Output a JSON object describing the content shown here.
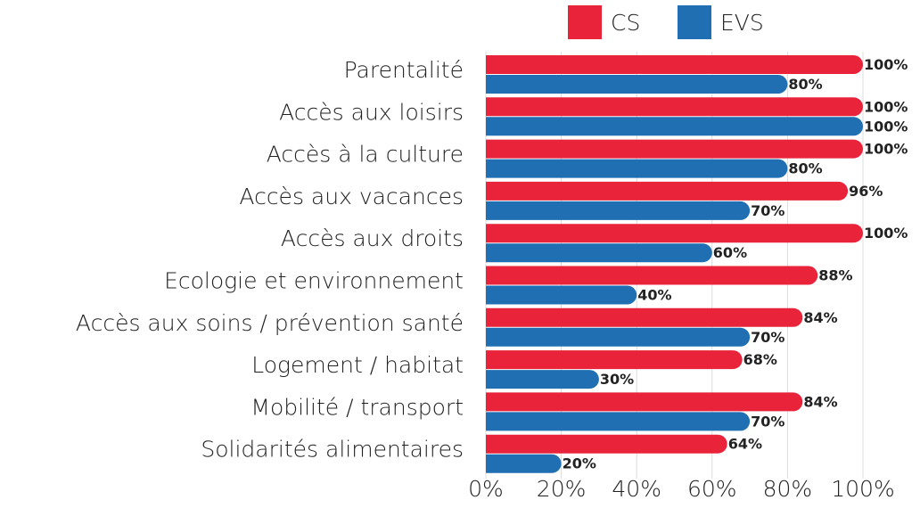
{
  "chart_data": {
    "type": "barh",
    "categories": [
      "Parentalité",
      "Accès aux loisirs",
      "Accès à la culture",
      "Accès aux vacances",
      "Accès aux droits",
      "Ecologie et environnement",
      "Accès aux soins / prévention santé",
      "Logement / habitat",
      "Mobilité / transport",
      "Solidarités alimentaires"
    ],
    "series": [
      {
        "name": "CS",
        "color": "#e8233a",
        "values": [
          100,
          100,
          100,
          96,
          100,
          88,
          84,
          68,
          84,
          64
        ],
        "value_labels": [
          "100%",
          "100%",
          "100%",
          "96%",
          "100%",
          "88%",
          "84%",
          "68%",
          "84%",
          "64%"
        ]
      },
      {
        "name": "EVS",
        "color": "#1f6fb2",
        "values": [
          80,
          100,
          80,
          70,
          60,
          40,
          70,
          30,
          70,
          20
        ],
        "value_labels": [
          "80%",
          "100%",
          "80%",
          "70%",
          "60%",
          "40%",
          "70%",
          "30%",
          "70%",
          "20%"
        ]
      }
    ],
    "xlim": [
      0,
      100
    ],
    "xticks": [
      {
        "value": 0,
        "label": "0%"
      },
      {
        "value": 20,
        "label": "20%"
      },
      {
        "value": 40,
        "label": "40%"
      },
      {
        "value": 60,
        "label": "60%"
      },
      {
        "value": 80,
        "label": "80%"
      },
      {
        "value": 100,
        "label": "100%"
      }
    ],
    "grid": true,
    "legend": "top"
  }
}
